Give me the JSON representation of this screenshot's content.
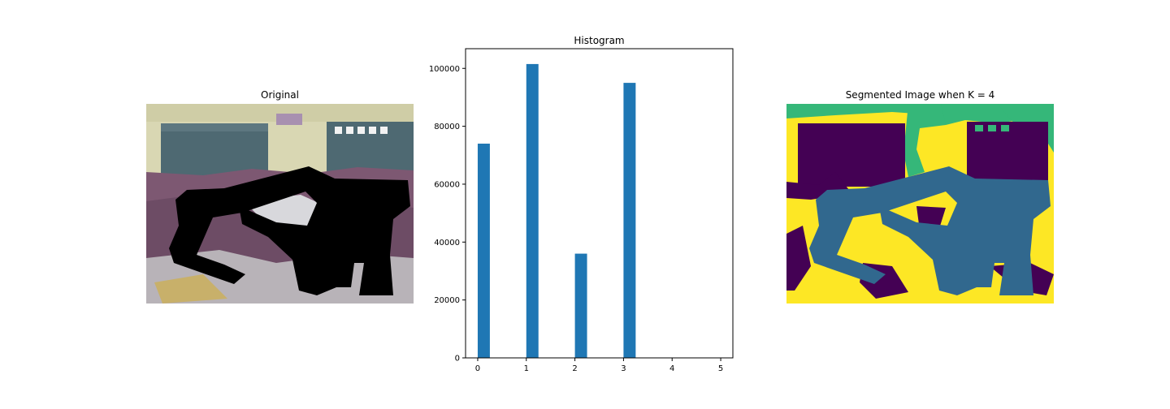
{
  "figure": {
    "left_title": "Original",
    "right_title": "Segmented Image when K = 4"
  },
  "chart_data": {
    "type": "bar",
    "title": "Histogram",
    "xlabel": "",
    "ylabel": "",
    "categories": [
      0,
      1,
      2,
      3,
      4,
      5
    ],
    "values": [
      74000,
      101500,
      36000,
      95000,
      0,
      0
    ],
    "xlim": [
      -0.25,
      5.25
    ],
    "ylim": [
      0,
      106800
    ],
    "x_ticks": [
      0,
      1,
      2,
      3,
      4,
      5
    ],
    "y_ticks": [
      0,
      20000,
      40000,
      60000,
      80000,
      100000
    ],
    "grid": false,
    "bar_color": "#1f77b4"
  },
  "colors": {
    "wall": "#d9d7b3",
    "door": "#4e6972",
    "clothes": "#7d5872",
    "mask": "#000000",
    "seg_yellow": "#fde725",
    "seg_green": "#35b779",
    "seg_teal": "#31688e",
    "seg_purple": "#440154"
  }
}
